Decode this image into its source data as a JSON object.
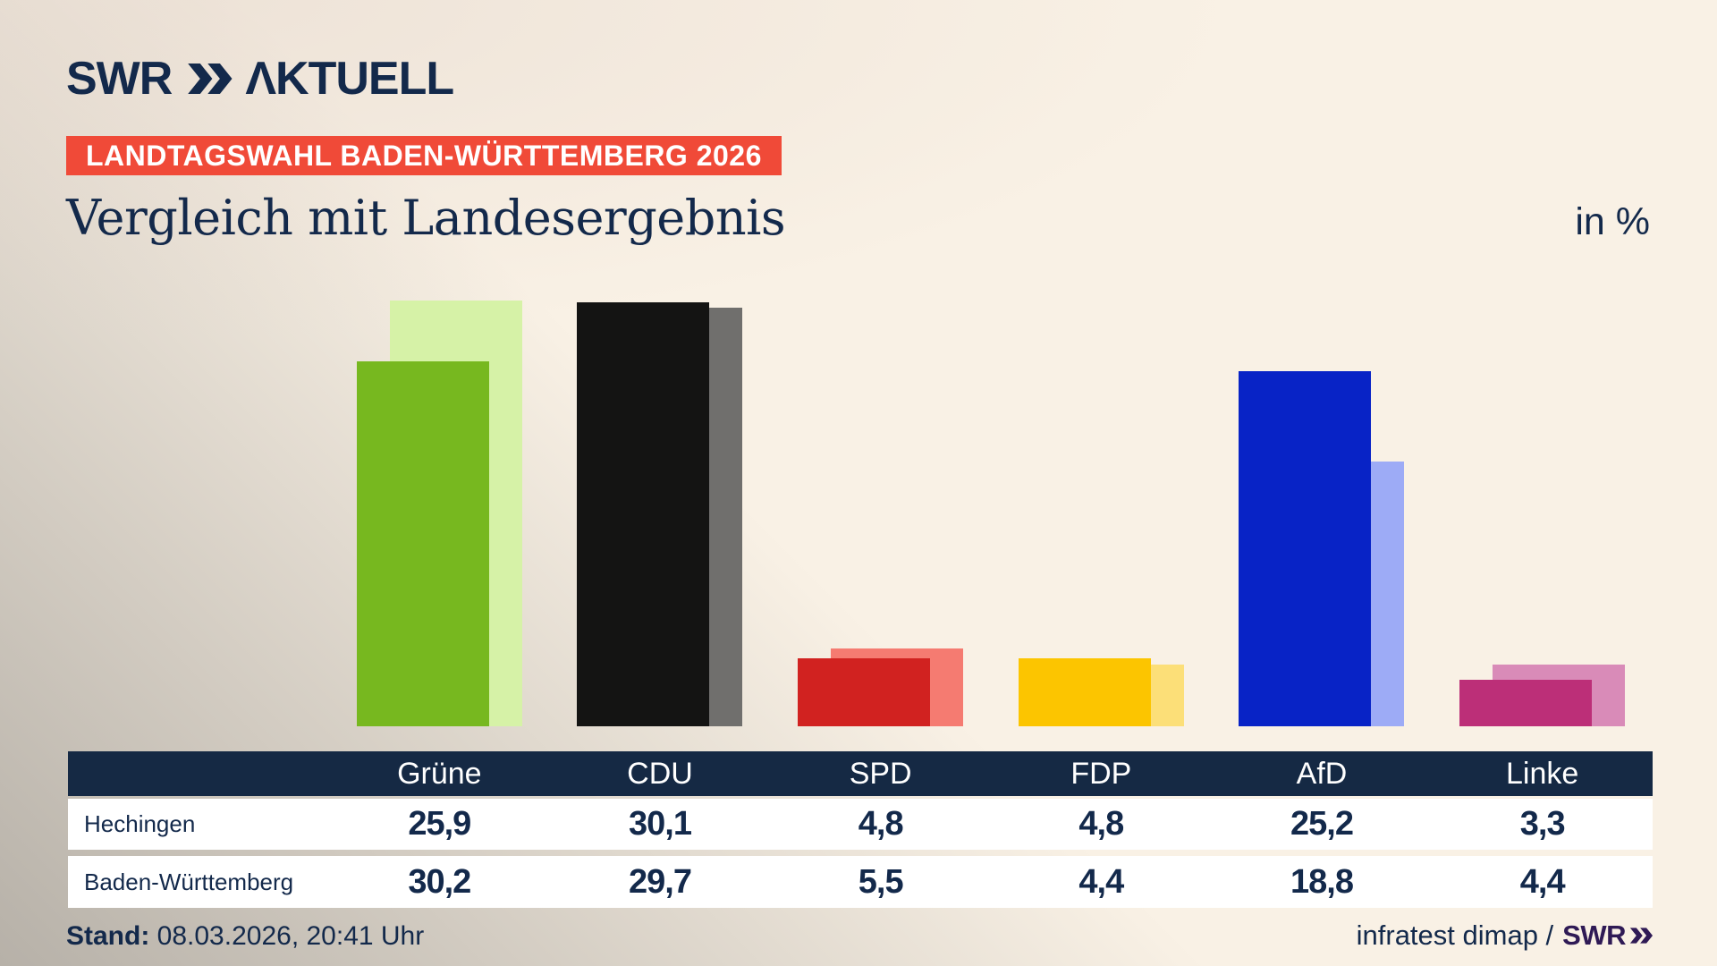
{
  "brand": {
    "logo_swr": "SWR",
    "logo_aktuell": "ΛKTUELL",
    "navy": "#13294b"
  },
  "badge": {
    "label": "LANDTAGSWAHL BADEN-WÜRTTEMBERG 2026",
    "bg_color": "#f04a38"
  },
  "title": "Vergleich mit Landesergebnis",
  "unit_label": "in %",
  "chart_data": {
    "type": "bar",
    "title": "Vergleich mit Landesergebnis",
    "unit": "in %",
    "categories": [
      "Grüne",
      "CDU",
      "SPD",
      "FDP",
      "AfD",
      "Linke"
    ],
    "series": [
      {
        "name": "Hechingen",
        "values": [
          25.9,
          30.1,
          4.8,
          4.8,
          25.2,
          3.3
        ],
        "colors": [
          "#77b81f",
          "#141413",
          "#d12220",
          "#fcc500",
          "#0823c6",
          "#bc2f78"
        ]
      },
      {
        "name": "Baden-Württemberg",
        "values": [
          30.2,
          29.7,
          5.5,
          4.4,
          18.8,
          4.4
        ],
        "colors": [
          "#d6f2a7",
          "#706f6d",
          "#f57b71",
          "#fcdf78",
          "#9dabf6",
          "#d98bb8"
        ]
      }
    ],
    "ylim": [
      0,
      32
    ],
    "grid": false,
    "value_format": "decimal-comma",
    "legend_position": "table-below-chart"
  },
  "table": {
    "header": [
      "",
      "Grüne",
      "CDU",
      "SPD",
      "FDP",
      "AfD",
      "Linke"
    ],
    "rows": [
      {
        "label": "Hechingen",
        "cells": [
          "25,9",
          "30,1",
          "4,8",
          "4,8",
          "25,2",
          "3,3"
        ]
      },
      {
        "label": "Baden-Württemberg",
        "cells": [
          "30,2",
          "29,7",
          "5,5",
          "4,4",
          "18,8",
          "4,4"
        ]
      }
    ]
  },
  "footer": {
    "stand_label": "Stand:",
    "stand_value": "08.03.2026, 20:41 Uhr",
    "source_text": "infratest dimap /",
    "source_brand": "SWR"
  }
}
